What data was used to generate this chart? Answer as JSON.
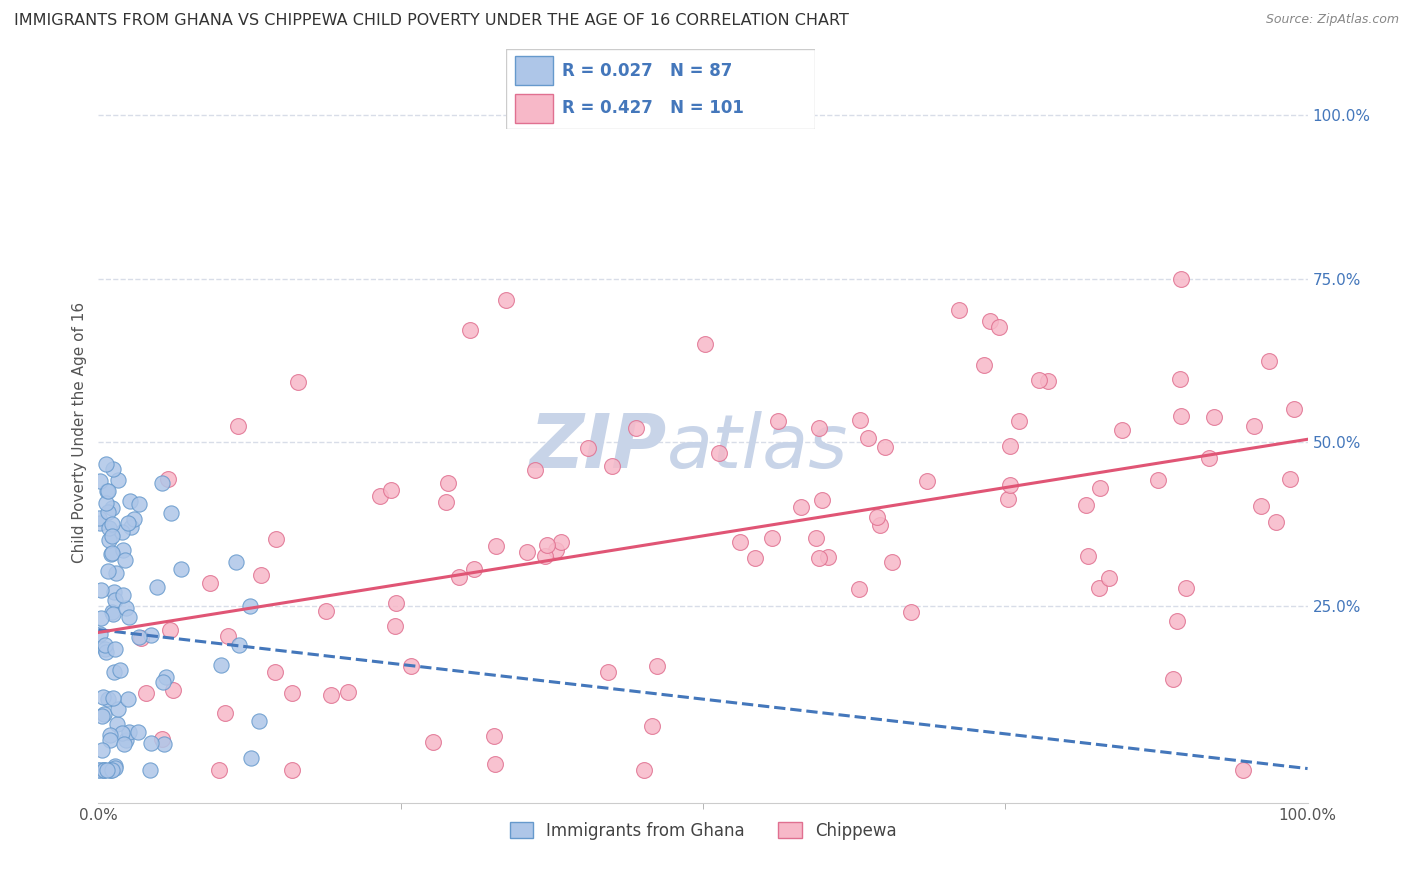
{
  "title": "IMMIGRANTS FROM GHANA VS CHIPPEWA CHILD POVERTY UNDER THE AGE OF 16 CORRELATION CHART",
  "source": "Source: ZipAtlas.com",
  "ylabel": "Child Poverty Under the Age of 16",
  "series1_name": "Immigrants from Ghana",
  "series1_color": "#aec6e8",
  "series1_edge": "#6699cc",
  "series1_line_color": "#4477bb",
  "series1_R": 0.027,
  "series1_N": 87,
  "series2_name": "Chippewa",
  "series2_color": "#f7b8c8",
  "series2_edge": "#e07090",
  "series2_line_color": "#e05575",
  "series2_R": 0.427,
  "series2_N": 101,
  "xlim": [
    0,
    1
  ],
  "ylim": [
    -0.05,
    1.08
  ],
  "ytick_positions": [
    0.25,
    0.5,
    0.75,
    1.0
  ],
  "ytick_labels": [
    "25.0%",
    "50.0%",
    "75.0%",
    "100.0%"
  ],
  "xtick_positions": [
    0.0,
    1.0
  ],
  "xticklabels": [
    "0.0%",
    "100.0%"
  ],
  "background_color": "#ffffff",
  "grid_color": "#d8dde8",
  "watermark_line1": "ZIP",
  "watermark_line2": "atlas",
  "watermark_color": "#c8d4e8",
  "legend_R_color": "#4477bb",
  "title_fontsize": 11.5,
  "label_fontsize": 11,
  "tick_fontsize": 11
}
